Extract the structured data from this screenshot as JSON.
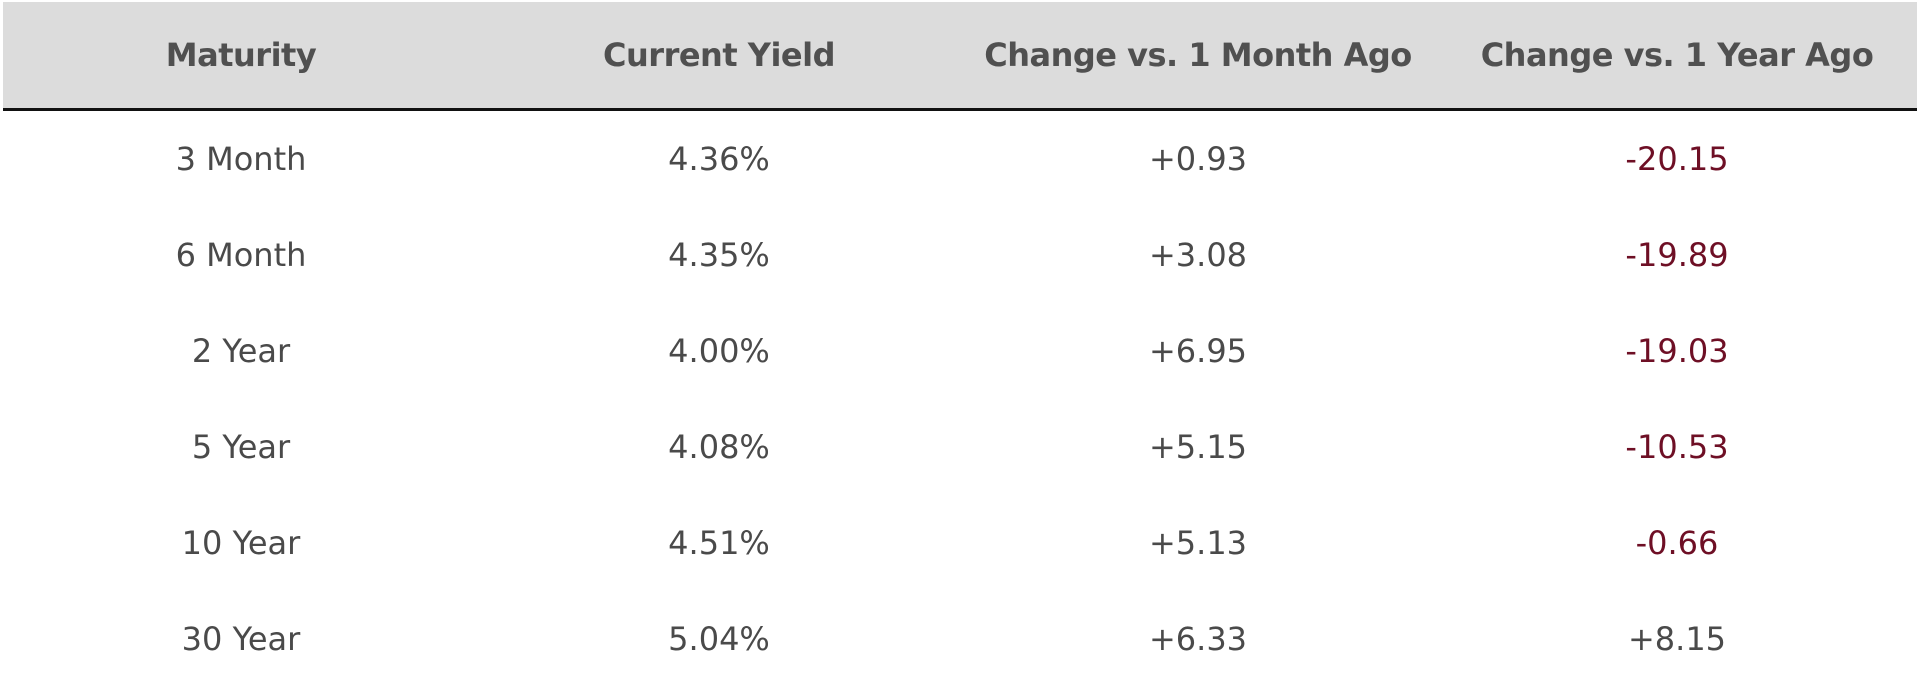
{
  "table": {
    "headers": [
      "Maturity",
      "Current Yield",
      "Change vs. 1 Month Ago",
      "Change vs. 1 Year Ago"
    ],
    "rows": [
      {
        "maturity": "3 Month",
        "current_yield": "4.36%",
        "change_1m": "+0.93",
        "change_1y": "-20.15",
        "change_1y_negative": true
      },
      {
        "maturity": "6 Month",
        "current_yield": "4.35%",
        "change_1m": "+3.08",
        "change_1y": "-19.89",
        "change_1y_negative": true
      },
      {
        "maturity": "2 Year",
        "current_yield": "4.00%",
        "change_1m": "+6.95",
        "change_1y": "-19.03",
        "change_1y_negative": true
      },
      {
        "maturity": "5 Year",
        "current_yield": "4.08%",
        "change_1m": "+5.15",
        "change_1y": "-10.53",
        "change_1y_negative": true
      },
      {
        "maturity": "10 Year",
        "current_yield": "4.51%",
        "change_1m": "+5.13",
        "change_1y": "-0.66",
        "change_1y_negative": true
      },
      {
        "maturity": "30 Year",
        "current_yield": "5.04%",
        "change_1m": "+6.33",
        "change_1y": "+8.15",
        "change_1y_negative": false
      }
    ]
  },
  "colors": {
    "header_background": "#dcdcdc",
    "text": "#4a4a4a",
    "negative_change": "#6e0f25",
    "header_rule": "#111111"
  }
}
